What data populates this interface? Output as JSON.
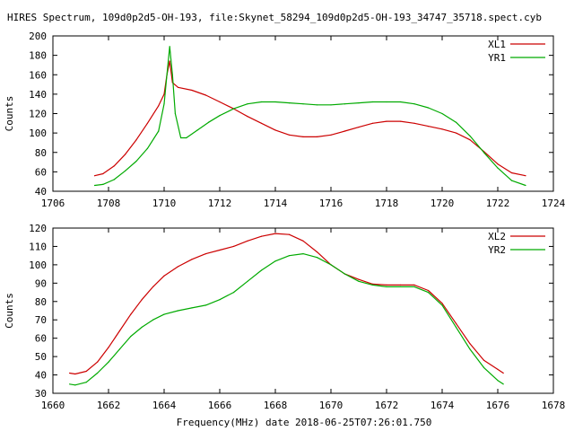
{
  "title": "HIRES Spectrum, 109d0p2d5-OH-193, file:Skynet_58294_109d0p2d5-OH-193_34747_35718.spect.cyb",
  "xlabel": "Frequency(MHz) date 2018-06-25T07:26:01.750",
  "chart_data": [
    {
      "type": "line",
      "ylabel": "Counts",
      "xlim": [
        1706,
        1724
      ],
      "ylim": [
        40,
        200
      ],
      "xticks": [
        1706,
        1708,
        1710,
        1712,
        1714,
        1716,
        1718,
        1720,
        1722,
        1724
      ],
      "yticks": [
        40,
        60,
        80,
        100,
        120,
        140,
        160,
        180,
        200
      ],
      "legend_position": "top-right",
      "series": [
        {
          "name": "XL1",
          "color": "#cc0000",
          "points": [
            [
              1707.5,
              56
            ],
            [
              1707.8,
              58
            ],
            [
              1708.2,
              66
            ],
            [
              1708.6,
              78
            ],
            [
              1709.0,
              93
            ],
            [
              1709.4,
              110
            ],
            [
              1709.8,
              128
            ],
            [
              1710.0,
              140
            ],
            [
              1710.1,
              160
            ],
            [
              1710.2,
              174
            ],
            [
              1710.3,
              152
            ],
            [
              1710.5,
              147
            ],
            [
              1711.0,
              144
            ],
            [
              1711.5,
              139
            ],
            [
              1712.0,
              132
            ],
            [
              1712.5,
              125
            ],
            [
              1713.0,
              117
            ],
            [
              1713.5,
              110
            ],
            [
              1714.0,
              103
            ],
            [
              1714.5,
              98
            ],
            [
              1715.0,
              96
            ],
            [
              1715.5,
              96
            ],
            [
              1716.0,
              98
            ],
            [
              1716.5,
              102
            ],
            [
              1717.0,
              106
            ],
            [
              1717.5,
              110
            ],
            [
              1718.0,
              112
            ],
            [
              1718.5,
              112
            ],
            [
              1719.0,
              110
            ],
            [
              1719.5,
              107
            ],
            [
              1720.0,
              104
            ],
            [
              1720.5,
              100
            ],
            [
              1721.0,
              93
            ],
            [
              1721.5,
              81
            ],
            [
              1722.0,
              68
            ],
            [
              1722.5,
              59
            ],
            [
              1723.0,
              56
            ]
          ]
        },
        {
          "name": "YR1",
          "color": "#00aa00",
          "points": [
            [
              1707.5,
              46
            ],
            [
              1707.8,
              47
            ],
            [
              1708.2,
              52
            ],
            [
              1708.6,
              61
            ],
            [
              1709.0,
              71
            ],
            [
              1709.4,
              84
            ],
            [
              1709.8,
              102
            ],
            [
              1710.0,
              130
            ],
            [
              1710.1,
              160
            ],
            [
              1710.2,
              189
            ],
            [
              1710.3,
              160
            ],
            [
              1710.4,
              120
            ],
            [
              1710.6,
              95
            ],
            [
              1710.8,
              95
            ],
            [
              1711.2,
              103
            ],
            [
              1711.6,
              111
            ],
            [
              1712.0,
              118
            ],
            [
              1712.5,
              125
            ],
            [
              1713.0,
              130
            ],
            [
              1713.5,
              132
            ],
            [
              1714.0,
              132
            ],
            [
              1714.5,
              131
            ],
            [
              1715.0,
              130
            ],
            [
              1715.5,
              129
            ],
            [
              1716.0,
              129
            ],
            [
              1716.5,
              130
            ],
            [
              1717.0,
              131
            ],
            [
              1717.5,
              132
            ],
            [
              1718.0,
              132
            ],
            [
              1718.5,
              132
            ],
            [
              1719.0,
              130
            ],
            [
              1719.5,
              126
            ],
            [
              1720.0,
              120
            ],
            [
              1720.5,
              111
            ],
            [
              1721.0,
              97
            ],
            [
              1721.5,
              80
            ],
            [
              1722.0,
              64
            ],
            [
              1722.5,
              51
            ],
            [
              1723.0,
              46
            ]
          ]
        }
      ]
    },
    {
      "type": "line",
      "ylabel": "Counts",
      "xlim": [
        1660,
        1678
      ],
      "ylim": [
        30,
        120
      ],
      "xticks": [
        1660,
        1662,
        1664,
        1666,
        1668,
        1670,
        1672,
        1674,
        1676,
        1678
      ],
      "yticks": [
        30,
        40,
        50,
        60,
        70,
        80,
        90,
        100,
        110,
        120
      ],
      "legend_position": "top-right",
      "series": [
        {
          "name": "XL2",
          "color": "#cc0000",
          "points": [
            [
              1660.6,
              41
            ],
            [
              1660.8,
              40.5
            ],
            [
              1661.2,
              42
            ],
            [
              1661.6,
              47
            ],
            [
              1662.0,
              55
            ],
            [
              1662.4,
              64
            ],
            [
              1662.8,
              73
            ],
            [
              1663.2,
              81
            ],
            [
              1663.6,
              88
            ],
            [
              1664.0,
              94
            ],
            [
              1664.5,
              99
            ],
            [
              1665.0,
              103
            ],
            [
              1665.5,
              106
            ],
            [
              1666.0,
              108
            ],
            [
              1666.5,
              110
            ],
            [
              1667.0,
              113
            ],
            [
              1667.5,
              115.5
            ],
            [
              1668.0,
              117
            ],
            [
              1668.5,
              116.5
            ],
            [
              1669.0,
              113
            ],
            [
              1669.5,
              107
            ],
            [
              1670.0,
              100
            ],
            [
              1670.5,
              95
            ],
            [
              1671.0,
              92
            ],
            [
              1671.5,
              89.5
            ],
            [
              1672.0,
              89
            ],
            [
              1672.5,
              89
            ],
            [
              1673.0,
              89
            ],
            [
              1673.5,
              86
            ],
            [
              1674.0,
              79
            ],
            [
              1674.5,
              68
            ],
            [
              1675.0,
              57
            ],
            [
              1675.5,
              48
            ],
            [
              1676.0,
              43
            ],
            [
              1676.2,
              41
            ]
          ]
        },
        {
          "name": "YR2",
          "color": "#00aa00",
          "points": [
            [
              1660.6,
              35
            ],
            [
              1660.8,
              34.5
            ],
            [
              1661.2,
              36
            ],
            [
              1661.6,
              41
            ],
            [
              1662.0,
              47
            ],
            [
              1662.4,
              54
            ],
            [
              1662.8,
              61
            ],
            [
              1663.2,
              66
            ],
            [
              1663.6,
              70
            ],
            [
              1664.0,
              73
            ],
            [
              1664.5,
              75
            ],
            [
              1665.0,
              76.5
            ],
            [
              1665.5,
              78
            ],
            [
              1666.0,
              81
            ],
            [
              1666.5,
              85
            ],
            [
              1667.0,
              91
            ],
            [
              1667.5,
              97
            ],
            [
              1668.0,
              102
            ],
            [
              1668.5,
              105
            ],
            [
              1669.0,
              106
            ],
            [
              1669.5,
              104
            ],
            [
              1670.0,
              100
            ],
            [
              1670.5,
              95
            ],
            [
              1671.0,
              91
            ],
            [
              1671.5,
              89
            ],
            [
              1672.0,
              88
            ],
            [
              1672.5,
              88
            ],
            [
              1673.0,
              88
            ],
            [
              1673.5,
              85
            ],
            [
              1674.0,
              78
            ],
            [
              1674.5,
              66
            ],
            [
              1675.0,
              54
            ],
            [
              1675.5,
              44
            ],
            [
              1676.0,
              37
            ],
            [
              1676.2,
              35
            ]
          ]
        }
      ]
    }
  ]
}
